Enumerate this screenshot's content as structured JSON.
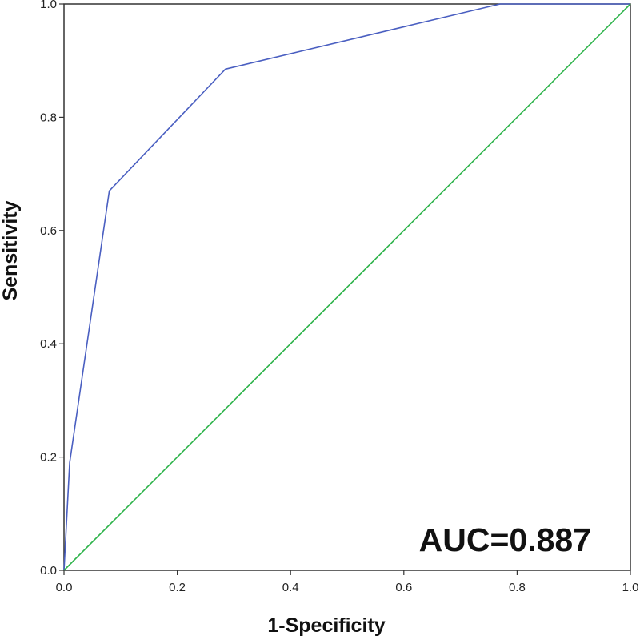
{
  "chart_data": {
    "type": "line",
    "xlabel": "1-Specificity",
    "ylabel": "Sensitivity",
    "xlim": [
      0.0,
      1.0
    ],
    "ylim": [
      0.0,
      1.0
    ],
    "grid": false,
    "x_ticks": [
      "0.0",
      "0.2",
      "0.4",
      "0.6",
      "0.8",
      "1.0"
    ],
    "y_ticks": [
      "0.0",
      "0.2",
      "0.4",
      "0.6",
      "0.8",
      "1.0"
    ],
    "annotation": "AUC=0.887",
    "series": [
      {
        "color": "#4a5fc1",
        "x": [
          0.0,
          0.01,
          0.08,
          0.285,
          0.77,
          1.0
        ],
        "y": [
          0.0,
          0.19,
          0.67,
          0.885,
          1.0,
          1.0
        ]
      },
      {
        "color": "#2db34a",
        "x": [
          0.0,
          1.0
        ],
        "y": [
          0.0,
          1.0
        ]
      }
    ]
  }
}
